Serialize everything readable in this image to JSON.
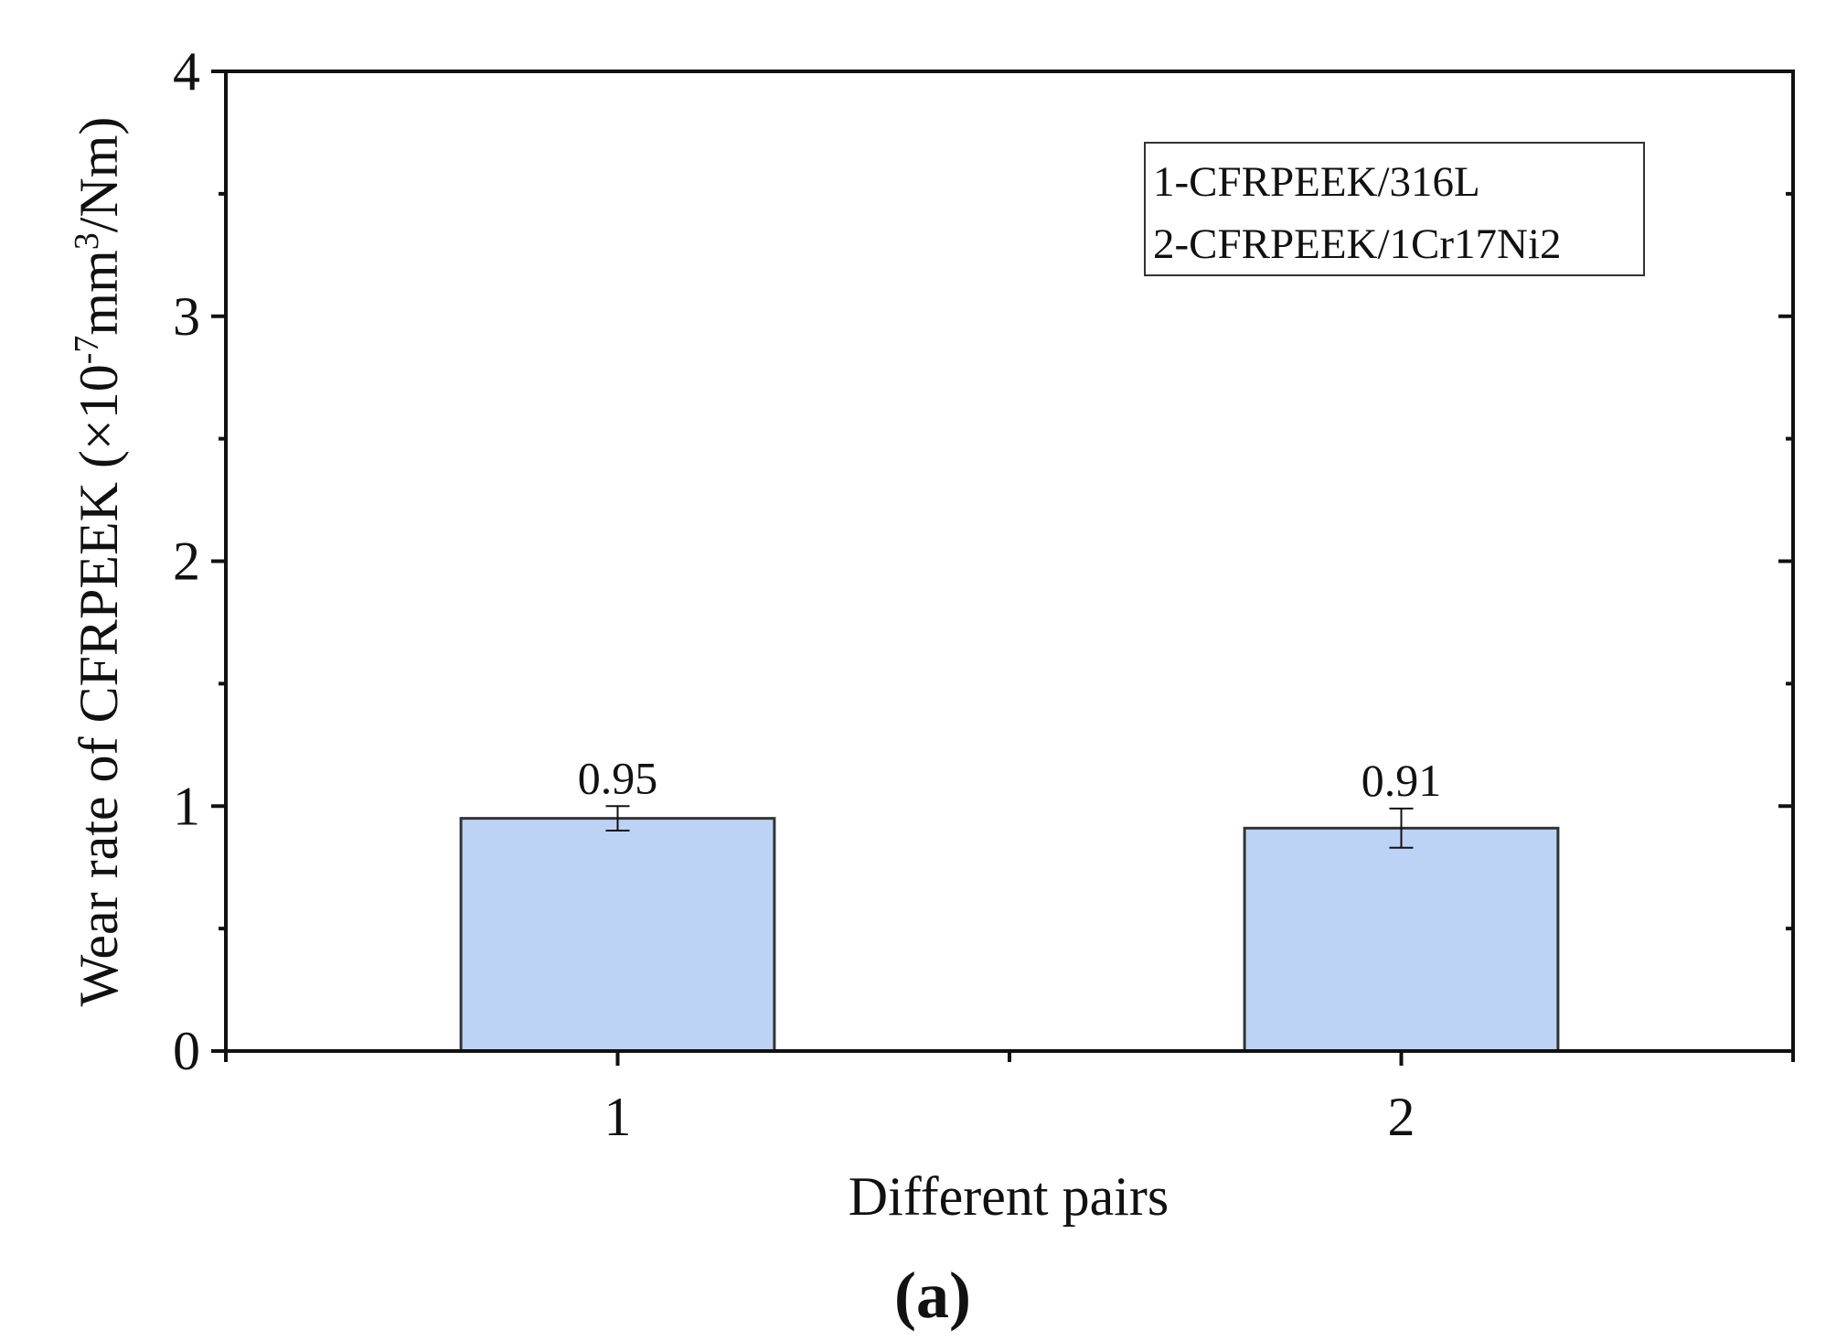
{
  "chart_data": {
    "type": "bar",
    "y_label": [
      "Wear rate of CFRPEEK (×10",
      "-7",
      "mm",
      "3",
      "/Nm)"
    ],
    "x_label": "Different pairs",
    "caption": "(a)",
    "x": [
      1,
      2
    ],
    "values": [
      0.95,
      0.91
    ],
    "errors": [
      0.05,
      0.08
    ],
    "color": "#bdd3f5",
    "xlim": [
      0.5,
      2.5
    ],
    "xticks": [
      1,
      2
    ],
    "ylim": [
      0,
      4
    ],
    "yticks": [
      0,
      1,
      2,
      3,
      4
    ],
    "legend_text": [
      "1-CFRPEEK/316L",
      "2-CFRPEEK/1Cr17Ni2"
    ],
    "grid": false
  }
}
